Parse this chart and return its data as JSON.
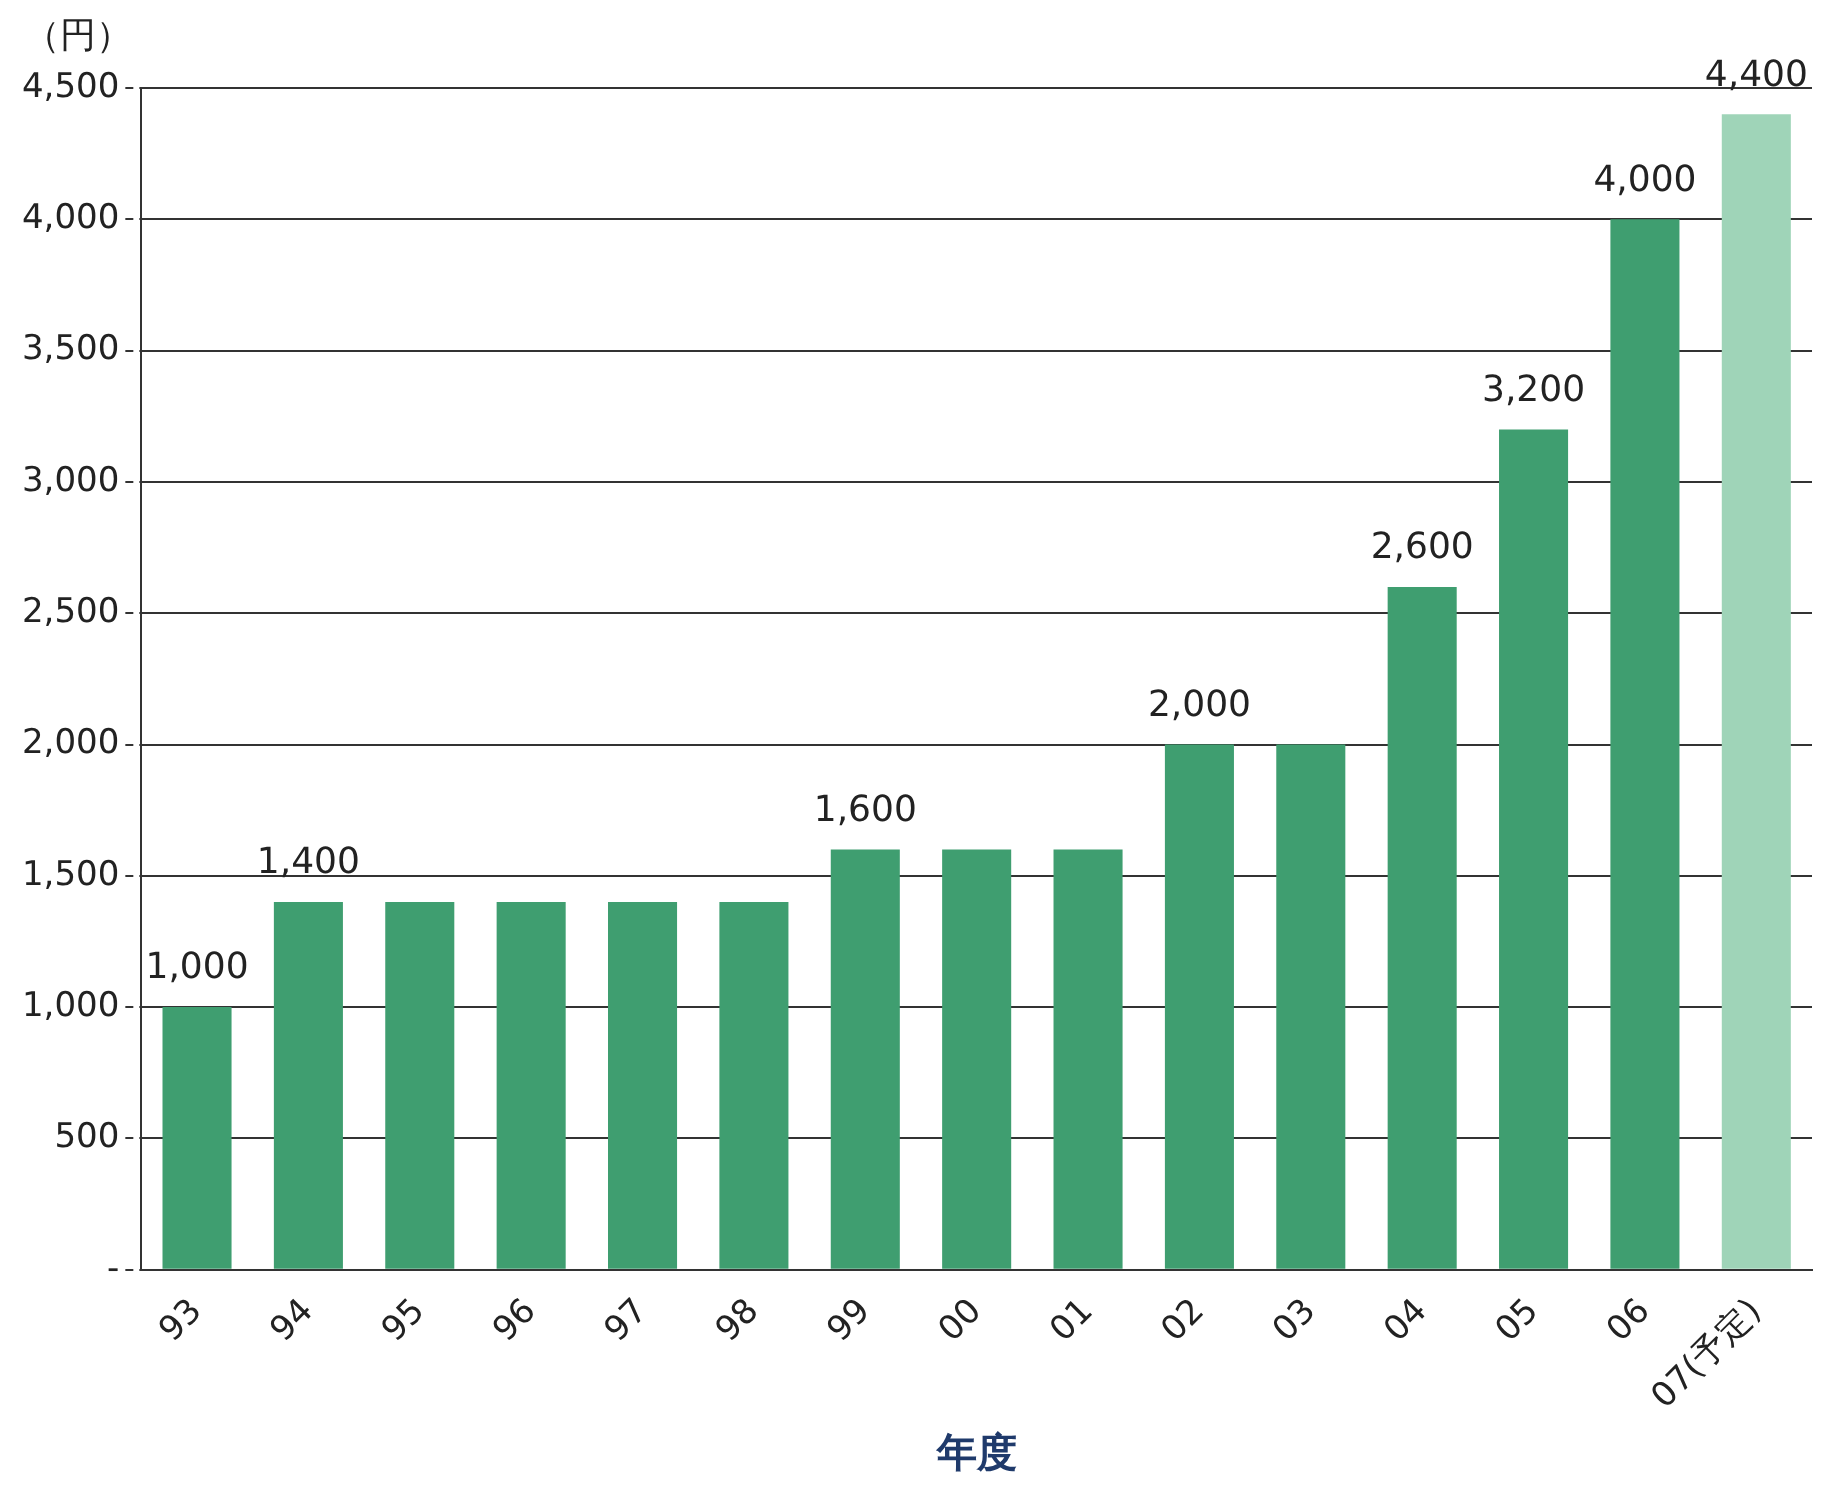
{
  "chart_data": {
    "type": "bar",
    "ylabel": "（円）",
    "xlabel": "年度",
    "categories": [
      "93",
      "94",
      "95",
      "96",
      "97",
      "98",
      "99",
      "00",
      "01",
      "02",
      "03",
      "04",
      "05",
      "06",
      "07(予定)"
    ],
    "values": [
      1000,
      1400,
      1400,
      1400,
      1400,
      1400,
      1600,
      1600,
      1600,
      2000,
      2000,
      2600,
      3200,
      4000,
      4400
    ],
    "colors": [
      "#3f9e70",
      "#3f9e70",
      "#3f9e70",
      "#3f9e70",
      "#3f9e70",
      "#3f9e70",
      "#3f9e70",
      "#3f9e70",
      "#3f9e70",
      "#3f9e70",
      "#3f9e70",
      "#3f9e70",
      "#3f9e70",
      "#3f9e70",
      "#9fd4b8"
    ],
    "value_labels": [
      "1,000",
      "1,400",
      null,
      null,
      null,
      null,
      "1,600",
      null,
      null,
      "2,000",
      null,
      "2,600",
      "3,200",
      "4,000",
      "4,400"
    ],
    "ylim": [
      0,
      4500
    ],
    "yticks": [
      {
        "value": 0,
        "label": "-"
      },
      500,
      {
        "value": 1000,
        "label": "1,000"
      },
      {
        "value": 1500,
        "label": "1,500"
      },
      {
        "value": 2000,
        "label": "2,000"
      },
      {
        "value": 2500,
        "label": "2,500"
      },
      {
        "value": 3000,
        "label": "3,000"
      },
      {
        "value": 3500,
        "label": "3,500"
      },
      {
        "value": 4000,
        "label": "4,000"
      },
      {
        "value": 4500,
        "label": "4,500"
      }
    ],
    "grid": "y",
    "legend": false,
    "line_style": "dashed"
  }
}
